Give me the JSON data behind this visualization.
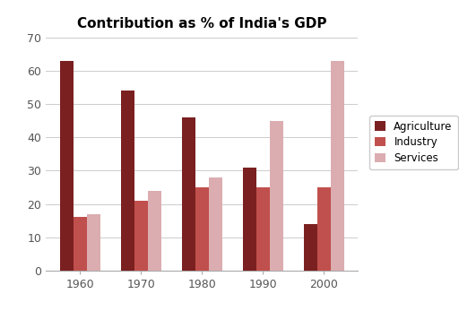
{
  "title": "Contribution as % of India's GDP",
  "years": [
    "1960",
    "1970",
    "1980",
    "1990",
    "2000"
  ],
  "agriculture": [
    63,
    54,
    46,
    31,
    14
  ],
  "industry": [
    16,
    21,
    25,
    25,
    25
  ],
  "services": [
    17,
    24,
    28,
    45,
    63
  ],
  "color_agriculture": "#7B2020",
  "color_industry": "#C0504D",
  "color_services": "#DBADB0",
  "ylim": [
    0,
    70
  ],
  "yticks": [
    0,
    10,
    20,
    30,
    40,
    50,
    60,
    70
  ],
  "legend_labels": [
    "Agriculture",
    "Industry",
    "Services"
  ],
  "bar_width": 0.22,
  "figsize": [
    5.12,
    3.47
  ],
  "dpi": 100
}
